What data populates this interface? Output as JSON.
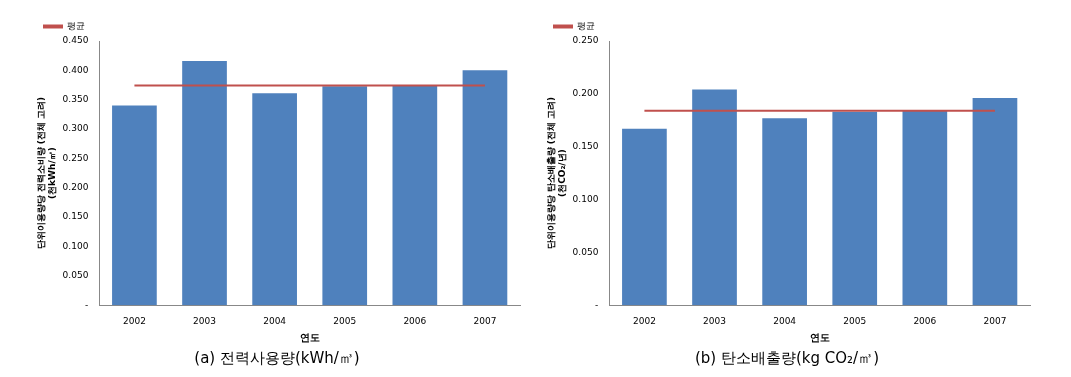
{
  "chart_data": [
    {
      "type": "bar",
      "title": "(a) 전력사용량(kWh/㎥)",
      "x_label": "연도",
      "y_label": [
        "단위이용량당 전력소비량 (전체 고려)",
        "(천kWh/㎥)"
      ],
      "categories": [
        "2002",
        "2003",
        "2004",
        "2005",
        "2006",
        "2007"
      ],
      "series": [
        {
          "type": "bar",
          "color": "#4f81bd",
          "values": [
            0.34,
            0.416,
            0.361,
            0.373,
            0.374,
            0.4
          ]
        },
        {
          "name": "평균",
          "type": "line",
          "color": "#c0504d",
          "values": [
            0.374,
            0.374,
            0.374,
            0.374,
            0.374,
            0.374
          ]
        }
      ],
      "ylim": [
        0,
        0.45
      ],
      "yticks": [
        {
          "value": 0,
          "label": "-"
        },
        {
          "value": 0.05,
          "label": "0.050"
        },
        {
          "value": 0.1,
          "label": "0.100"
        },
        {
          "value": 0.15,
          "label": "0.150"
        },
        {
          "value": 0.2,
          "label": "0.200"
        },
        {
          "value": 0.25,
          "label": "0.250"
        },
        {
          "value": 0.3,
          "label": "0.300"
        },
        {
          "value": 0.35,
          "label": "0.350"
        },
        {
          "value": 0.4,
          "label": "0.400"
        },
        {
          "value": 0.45,
          "label": "0.450"
        }
      ],
      "grid": false,
      "legend": "upper left"
    },
    {
      "type": "bar",
      "title": "(b) 탄소배출량(kg CO₂/㎥)",
      "x_label": "연도",
      "y_label": [
        "단위이용량당 탄소배출량 (전체 고려)",
        "(천CO₂/년)"
      ],
      "categories": [
        "2002",
        "2003",
        "2004",
        "2005",
        "2006",
        "2007"
      ],
      "series": [
        {
          "type": "bar",
          "color": "#4f81bd",
          "values": [
            0.167,
            0.204,
            0.177,
            0.183,
            0.184,
            0.196
          ]
        },
        {
          "name": "평균",
          "type": "line",
          "color": "#c0504d",
          "values": [
            0.184,
            0.184,
            0.184,
            0.184,
            0.184,
            0.184
          ]
        }
      ],
      "ylim": [
        0,
        0.25
      ],
      "yticks": [
        {
          "value": 0,
          "label": "-"
        },
        {
          "value": 0.05,
          "label": "0.050"
        },
        {
          "value": 0.1,
          "label": "0.100"
        },
        {
          "value": 0.15,
          "label": "0.150"
        },
        {
          "value": 0.2,
          "label": "0.200"
        },
        {
          "value": 0.25,
          "label": "0.250"
        }
      ],
      "grid": false,
      "legend": "upper left"
    }
  ]
}
